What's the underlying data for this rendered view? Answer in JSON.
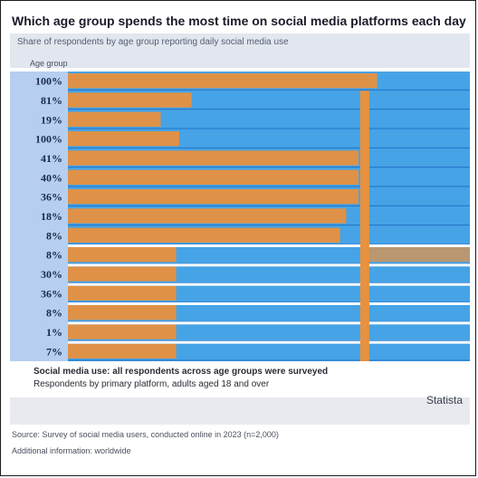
{
  "header": {
    "title": "Which age group spends the most time on social media platforms each day",
    "subtitle": "Share of respondents by age group reporting daily social media use",
    "category_label": "Age group"
  },
  "chart_data": {
    "type": "bar",
    "orientation": "horizontal",
    "categories": [
      "100%",
      "81%",
      "19%",
      "100%",
      "41%",
      "40%",
      "36%",
      "18%",
      "8%",
      "8%",
      "30%",
      "36%",
      "8%",
      "1%",
      "7%"
    ],
    "series": [
      {
        "values": [
          100,
          40,
          30,
          36,
          94,
          94,
          94,
          90,
          88,
          35,
          35,
          35,
          35,
          35,
          35
        ]
      },
      {
        "values": [
          0,
          0,
          0,
          0,
          0,
          0,
          0,
          0,
          0,
          35,
          0,
          0,
          0,
          0,
          0
        ]
      }
    ],
    "marker_value": 96,
    "xlim": [
      0,
      130
    ],
    "grid": false,
    "legend": "none",
    "colors": {
      "background": "#46a3e6",
      "bar": "#e8913e",
      "row_line": "#2272c8",
      "separator": "#ffffff",
      "label_panel": "#b6cff0",
      "marker": "#e8913e"
    }
  },
  "notes": {
    "line1": "Social media use: all respondents across age groups were surveyed",
    "line2": "Respondents by primary platform, adults aged 18 and over"
  },
  "brand": "Statista",
  "footer": {
    "source": "Source: Survey of social media users, conducted online in 2023 (n=2,000)",
    "credit": "Additional information: worldwide"
  }
}
